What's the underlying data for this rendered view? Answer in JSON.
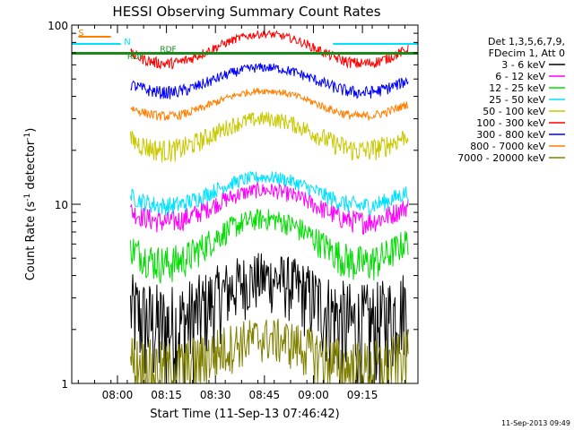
{
  "chart_data": {
    "type": "line",
    "title": "HESSI Observing Summary Count Rates",
    "xlabel": "Start Time (11-Sep-13 07:46:42)",
    "ylabel_parts": [
      "Count Rate (s",
      "-1",
      " detector",
      "-1",
      ")"
    ],
    "yscale": "log",
    "ylim": [
      1,
      100
    ],
    "xlim_minutes": [
      0,
      106
    ],
    "x_ticks": [
      {
        "t": 14,
        "label": "08:00"
      },
      {
        "t": 29,
        "label": "08:15"
      },
      {
        "t": 44,
        "label": "08:30"
      },
      {
        "t": 59,
        "label": "08:45"
      },
      {
        "t": 74,
        "label": "09:00"
      },
      {
        "t": 89,
        "label": "09:15"
      }
    ],
    "y_ticks": [
      {
        "v": 1,
        "label": "1"
      },
      {
        "v": 10,
        "label": "10"
      },
      {
        "v": 100,
        "label": "100"
      }
    ],
    "legend": {
      "header": [
        "Det 1,3,5,6,7,9,",
        "FDecim 1, Att 0"
      ],
      "placement": "right"
    },
    "flags": [
      {
        "label": "S",
        "color": "#ff7f00"
      },
      {
        "label": "N",
        "color": "#00e0ff"
      },
      {
        "label": "RDF",
        "color": "#1a8a1a"
      },
      {
        "label": "RDF",
        "color": "#1a8a1a"
      }
    ],
    "series": [
      {
        "name": "3 - 6 keV",
        "color": "#000000",
        "base": 3.0,
        "amp": 0.9,
        "noise": 0.5
      },
      {
        "name": "6 - 12 keV",
        "color": "#ff00ff",
        "base": 10.0,
        "amp": 2.0,
        "noise": 0.12
      },
      {
        "name": "12 - 25 keV",
        "color": "#00dd00",
        "base": 6.5,
        "amp": 1.8,
        "noise": 0.18
      },
      {
        "name": "25 - 50 keV",
        "color": "#00e0ff",
        "base": 12.0,
        "amp": 2.2,
        "noise": 0.1
      },
      {
        "name": "50 - 100 keV",
        "color": "#c8c800",
        "base": 25.0,
        "amp": 5.0,
        "noise": 0.12
      },
      {
        "name": "100 - 300 keV",
        "color": "#ff0000",
        "base": 75.0,
        "amp": 14.0,
        "noise": 0.06
      },
      {
        "name": "300 - 800 keV",
        "color": "#0000ff",
        "base": 50.0,
        "amp": 8.0,
        "noise": 0.07
      },
      {
        "name": "800 - 7000 keV",
        "color": "#ff7f00",
        "base": 37.0,
        "amp": 6.0,
        "noise": 0.05
      },
      {
        "name": "7000 - 20000 keV",
        "color": "#808000",
        "base": 1.5,
        "amp": 0.3,
        "noise": 0.35
      }
    ],
    "footer_date": "11-Sep-2013 09:49"
  }
}
